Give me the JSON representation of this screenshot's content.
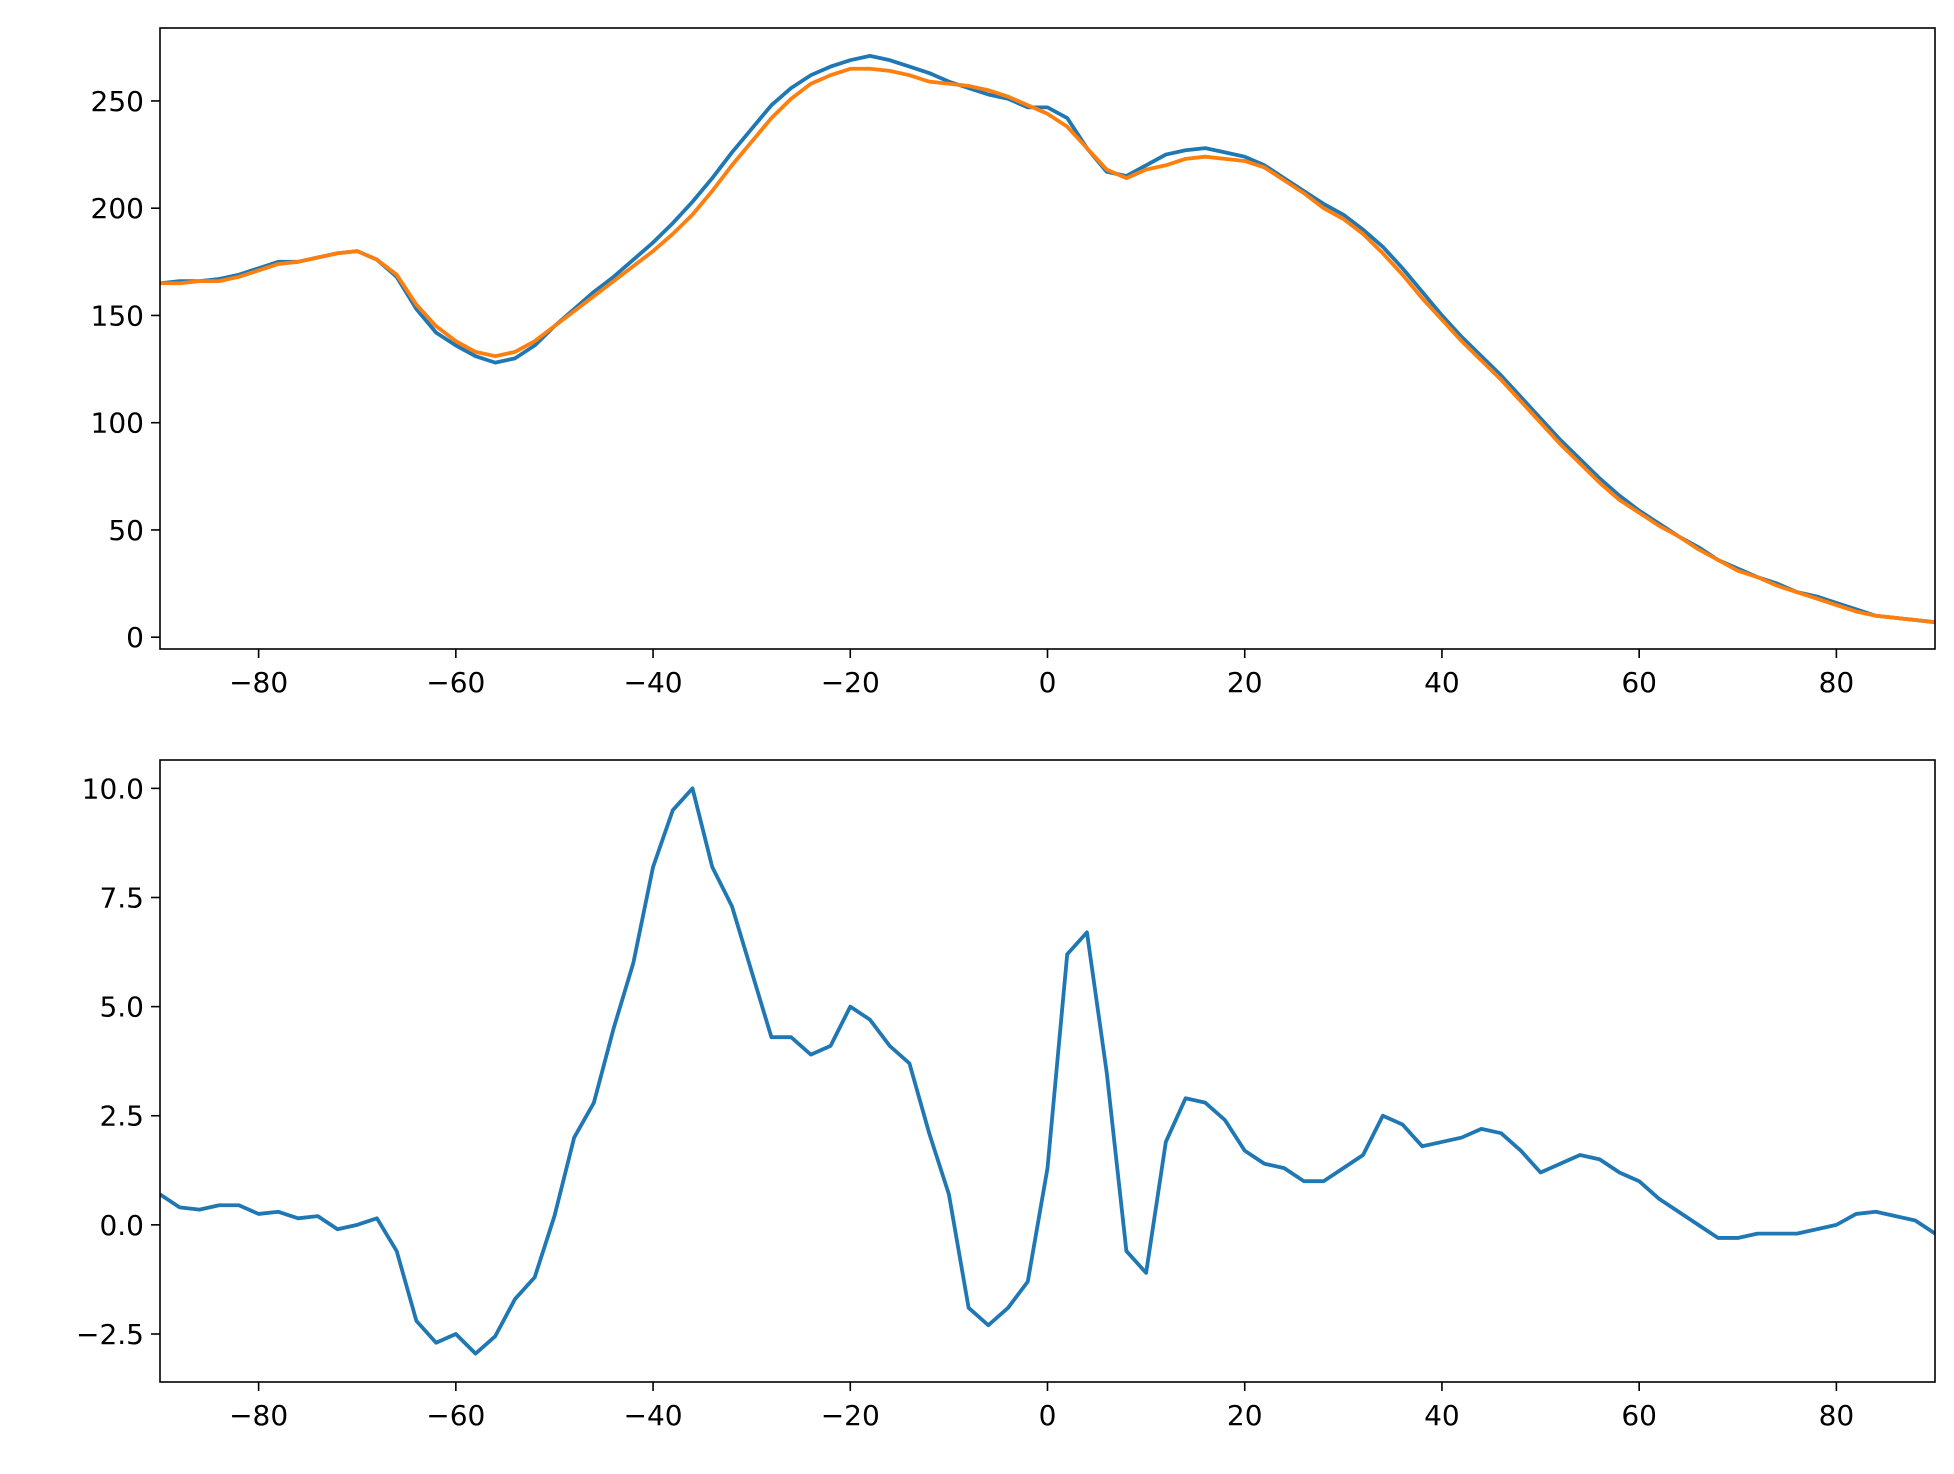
{
  "chart_data": [
    {
      "type": "line",
      "x": [
        -90,
        -88,
        -86,
        -84,
        -82,
        -80,
        -78,
        -76,
        -74,
        -72,
        -70,
        -68,
        -66,
        -64,
        -62,
        -60,
        -58,
        -56,
        -54,
        -52,
        -50,
        -48,
        -46,
        -44,
        -42,
        -40,
        -38,
        -36,
        -34,
        -32,
        -30,
        -28,
        -26,
        -24,
        -22,
        -20,
        -18,
        -16,
        -14,
        -12,
        -10,
        -8,
        -6,
        -4,
        -2,
        0,
        2,
        4,
        6,
        8,
        10,
        12,
        14,
        16,
        18,
        20,
        22,
        24,
        26,
        28,
        30,
        32,
        34,
        36,
        38,
        40,
        42,
        44,
        46,
        48,
        50,
        52,
        54,
        56,
        58,
        60,
        62,
        64,
        66,
        68,
        70,
        72,
        74,
        76,
        78,
        80,
        82,
        84,
        86,
        88,
        90
      ],
      "series": [
        {
          "color": "#1f77b4",
          "values": [
            165,
            166,
            166,
            167,
            169,
            172,
            175,
            175,
            177,
            179,
            180,
            176,
            168,
            153,
            142,
            136,
            131,
            128,
            130,
            136,
            145,
            153,
            161,
            168,
            176,
            184,
            193,
            203,
            214,
            226,
            237,
            248,
            256,
            262,
            266,
            269,
            271,
            269,
            266,
            263,
            259,
            256,
            253,
            251,
            247,
            247,
            242,
            228,
            217,
            215,
            220,
            225,
            227,
            228,
            226,
            224,
            220,
            214,
            208,
            202,
            197,
            190,
            182,
            172,
            161,
            150,
            140,
            131,
            122,
            112,
            102,
            92,
            83,
            74,
            66,
            59,
            53,
            47,
            42,
            36,
            32,
            28,
            25,
            21,
            19,
            16,
            13,
            10,
            9,
            8,
            7
          ]
        },
        {
          "color": "#ff7f0e",
          "values": [
            165,
            165,
            166,
            166,
            168,
            171,
            174,
            175,
            177,
            179,
            180,
            176,
            169,
            155,
            145,
            138,
            133,
            131,
            133,
            138,
            145,
            152,
            159,
            166,
            173,
            180,
            188,
            197,
            208,
            220,
            231,
            242,
            251,
            258,
            262,
            265,
            265,
            264,
            262,
            259,
            258,
            257,
            255,
            252,
            248,
            244,
            238,
            228,
            218,
            214,
            218,
            220,
            223,
            224,
            223,
            222,
            219,
            213,
            207,
            200,
            195,
            188,
            179,
            169,
            158,
            148,
            138,
            129,
            120,
            110,
            100,
            90,
            81,
            72,
            64,
            58,
            52,
            47,
            41,
            36,
            31,
            28,
            24,
            21,
            18,
            15,
            12,
            10,
            9,
            8,
            7
          ]
        }
      ],
      "xlim": [
        -90,
        90
      ],
      "ylim": [
        -5.5,
        284
      ],
      "xticks": [
        {
          "value": -80,
          "label": "−80"
        },
        {
          "value": -60,
          "label": "−60"
        },
        {
          "value": -40,
          "label": "−40"
        },
        {
          "value": -20,
          "label": "−20"
        },
        0,
        20,
        40,
        60,
        80
      ],
      "yticks": [
        0,
        50,
        100,
        150,
        200,
        250
      ]
    },
    {
      "type": "line",
      "x": [
        -90,
        -88,
        -86,
        -84,
        -82,
        -80,
        -78,
        -76,
        -74,
        -72,
        -70,
        -68,
        -66,
        -64,
        -62,
        -60,
        -58,
        -56,
        -54,
        -52,
        -50,
        -48,
        -46,
        -44,
        -42,
        -40,
        -38,
        -36,
        -34,
        -32,
        -30,
        -28,
        -26,
        -24,
        -22,
        -20,
        -18,
        -16,
        -14,
        -12,
        -10,
        -8,
        -6,
        -4,
        -2,
        0,
        2,
        4,
        6,
        8,
        10,
        12,
        14,
        16,
        18,
        20,
        22,
        24,
        26,
        28,
        30,
        32,
        34,
        36,
        38,
        40,
        42,
        44,
        46,
        48,
        50,
        52,
        54,
        56,
        58,
        60,
        62,
        64,
        66,
        68,
        70,
        72,
        74,
        76,
        78,
        80,
        82,
        84,
        86,
        88,
        90
      ],
      "series": [
        {
          "color": "#1f77b4",
          "values": [
            0.7,
            0.4,
            0.35,
            0.45,
            0.45,
            0.25,
            0.3,
            0.15,
            0.2,
            -0.1,
            0.0,
            0.15,
            -0.6,
            -2.2,
            -2.7,
            -2.5,
            -2.95,
            -2.55,
            -1.7,
            -1.2,
            0.2,
            2.0,
            2.8,
            4.5,
            6.0,
            8.2,
            9.5,
            10.0,
            8.2,
            7.3,
            5.8,
            4.3,
            4.3,
            3.9,
            4.1,
            5.0,
            4.7,
            4.1,
            3.7,
            2.1,
            0.7,
            -1.9,
            -2.3,
            -1.9,
            -1.3,
            1.3,
            6.2,
            6.7,
            3.5,
            -0.6,
            -1.1,
            1.9,
            2.9,
            2.8,
            2.4,
            1.7,
            1.4,
            1.3,
            1.0,
            1.0,
            1.3,
            1.6,
            2.5,
            2.3,
            1.8,
            1.9,
            2.0,
            2.2,
            2.1,
            1.7,
            1.2,
            1.4,
            1.6,
            1.5,
            1.2,
            1.0,
            0.6,
            0.3,
            0.0,
            -0.3,
            -0.3,
            -0.2,
            -0.2,
            -0.2,
            -0.1,
            0.0,
            0.25,
            0.3,
            0.2,
            0.1,
            -0.2
          ]
        }
      ],
      "xlim": [
        -90,
        90
      ],
      "ylim": [
        -3.6,
        10.65
      ],
      "xticks": [
        {
          "value": -80,
          "label": "−80"
        },
        {
          "value": -60,
          "label": "−60"
        },
        {
          "value": -40,
          "label": "−40"
        },
        {
          "value": -20,
          "label": "−20"
        },
        0,
        20,
        40,
        60,
        80
      ],
      "yticks": [
        {
          "value": -2.5,
          "label": "−2.5"
        },
        {
          "value": 0,
          "label": "0.0"
        },
        2.5,
        {
          "value": 5,
          "label": "5.0"
        },
        7.5,
        {
          "value": 10,
          "label": "10.0"
        }
      ]
    }
  ]
}
